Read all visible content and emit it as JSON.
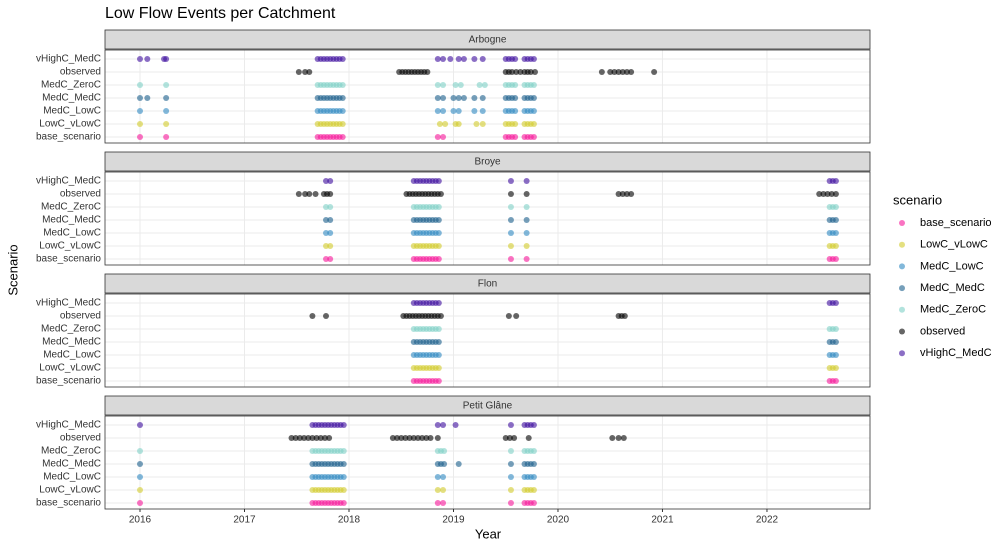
{
  "chart_data": {
    "type": "scatter",
    "title": "Low Flow Events per Catchment",
    "x_label": "Year",
    "y_label": "Scenario",
    "legend_title": "scenario",
    "xlim": [
      2015.665,
      2022.986
    ],
    "xticks": [
      2016,
      2017,
      2018,
      2019,
      2020,
      2021,
      2022
    ],
    "grid": true,
    "legend_position": "right",
    "series": [
      {
        "name": "base_scenario",
        "color": "#f7169a"
      },
      {
        "name": "LowC_vLowC",
        "color": "#d2cc2c"
      },
      {
        "name": "MedC_LowC",
        "color": "#2f89c2"
      },
      {
        "name": "MedC_MedC",
        "color": "#1a5f8c"
      },
      {
        "name": "MedC_ZeroC",
        "color": "#7fd0c6"
      },
      {
        "name": "observed",
        "color": "#000000"
      },
      {
        "name": "vHighC_MedC",
        "color": "#3d0d9e"
      }
    ],
    "panels": [
      {
        "title": "Arbogne",
        "x": [
          [
            2016.0,
            2016.25,
            2017.7,
            2017.73,
            2017.76,
            2017.79,
            2017.82,
            2017.85,
            2017.88,
            2017.91,
            2017.94,
            2018.85,
            2018.9,
            2019.5,
            2019.53,
            2019.56,
            2019.59,
            2019.68,
            2019.71,
            2019.74,
            2019.77
          ],
          [
            2016.0,
            2016.25,
            2017.7,
            2017.73,
            2017.76,
            2017.79,
            2017.82,
            2017.85,
            2017.88,
            2017.91,
            2017.94,
            2018.87,
            2018.92,
            2019.02,
            2019.05,
            2019.22,
            2019.28,
            2019.5,
            2019.53,
            2019.56,
            2019.59,
            2019.68,
            2019.71,
            2019.74,
            2019.77
          ],
          [
            2016.0,
            2016.25,
            2017.7,
            2017.73,
            2017.76,
            2017.79,
            2017.82,
            2017.85,
            2017.88,
            2017.91,
            2017.94,
            2018.85,
            2018.9,
            2019.0,
            2019.05,
            2019.2,
            2019.28,
            2019.5,
            2019.53,
            2019.56,
            2019.59,
            2019.68,
            2019.71,
            2019.74,
            2019.77
          ],
          [
            2016.0,
            2016.07,
            2016.25,
            2017.7,
            2017.73,
            2017.76,
            2017.79,
            2017.82,
            2017.85,
            2017.88,
            2017.91,
            2017.94,
            2018.85,
            2018.9,
            2019.0,
            2019.05,
            2019.1,
            2019.2,
            2019.28,
            2019.5,
            2019.53,
            2019.56,
            2019.59,
            2019.68,
            2019.71,
            2019.74,
            2019.77
          ],
          [
            2016.0,
            2016.25,
            2017.7,
            2017.73,
            2017.76,
            2017.79,
            2017.82,
            2017.85,
            2017.88,
            2017.91,
            2017.94,
            2018.85,
            2018.9,
            2019.02,
            2019.07,
            2019.25,
            2019.3,
            2019.5,
            2019.53,
            2019.56,
            2019.59,
            2019.68,
            2019.71,
            2019.74,
            2019.77
          ],
          [
            2017.52,
            2017.58,
            2017.62,
            2018.48,
            2018.51,
            2018.54,
            2018.57,
            2018.6,
            2018.63,
            2018.66,
            2018.69,
            2018.72,
            2018.75,
            2019.5,
            2019.53,
            2019.56,
            2019.6,
            2019.64,
            2019.68,
            2019.71,
            2019.74,
            2019.78,
            2020.42,
            2020.5,
            2020.54,
            2020.58,
            2020.62,
            2020.66,
            2020.7,
            2020.92
          ],
          [
            2016.0,
            2016.07,
            2016.23,
            2016.25,
            2017.7,
            2017.73,
            2017.76,
            2017.79,
            2017.82,
            2017.85,
            2017.88,
            2017.91,
            2017.94,
            2018.85,
            2018.9,
            2018.97,
            2019.05,
            2019.1,
            2019.2,
            2019.28,
            2019.5,
            2019.53,
            2019.56,
            2019.59,
            2019.68,
            2019.71,
            2019.74,
            2019.77
          ]
        ]
      },
      {
        "title": "Broye",
        "x": [
          [
            2017.78,
            2017.82,
            2018.62,
            2018.65,
            2018.68,
            2018.71,
            2018.74,
            2018.77,
            2018.8,
            2018.83,
            2018.86,
            2019.55,
            2019.7,
            2022.6,
            2022.63,
            2022.66
          ],
          [
            2017.78,
            2017.82,
            2018.62,
            2018.65,
            2018.68,
            2018.71,
            2018.74,
            2018.77,
            2018.8,
            2018.83,
            2018.86,
            2019.55,
            2019.7,
            2022.6,
            2022.63,
            2022.66
          ],
          [
            2017.78,
            2017.82,
            2018.62,
            2018.65,
            2018.68,
            2018.71,
            2018.74,
            2018.77,
            2018.8,
            2018.83,
            2018.86,
            2019.55,
            2019.7,
            2022.6,
            2022.63,
            2022.66
          ],
          [
            2017.78,
            2017.82,
            2018.62,
            2018.65,
            2018.68,
            2018.71,
            2018.74,
            2018.77,
            2018.8,
            2018.83,
            2018.86,
            2019.55,
            2019.7,
            2022.6,
            2022.63,
            2022.66
          ],
          [
            2017.78,
            2017.82,
            2018.62,
            2018.65,
            2018.68,
            2018.71,
            2018.74,
            2018.77,
            2018.8,
            2018.83,
            2018.86,
            2019.55,
            2019.7,
            2022.6,
            2022.63,
            2022.66
          ],
          [
            2017.52,
            2017.58,
            2017.62,
            2017.68,
            2017.76,
            2017.79,
            2017.82,
            2018.55,
            2018.58,
            2018.61,
            2018.64,
            2018.67,
            2018.7,
            2018.73,
            2018.76,
            2018.79,
            2018.82,
            2018.85,
            2018.88,
            2019.55,
            2019.7,
            2020.58,
            2020.62,
            2020.66,
            2020.7,
            2022.5,
            2022.54,
            2022.58,
            2022.62,
            2022.66
          ],
          [
            2017.78,
            2017.82,
            2018.62,
            2018.65,
            2018.68,
            2018.71,
            2018.74,
            2018.77,
            2018.8,
            2018.83,
            2018.86,
            2019.55,
            2019.7,
            2022.6,
            2022.63,
            2022.66
          ]
        ]
      },
      {
        "title": "Flon",
        "x": [
          [
            2018.62,
            2018.65,
            2018.68,
            2018.71,
            2018.74,
            2018.77,
            2018.8,
            2018.83,
            2018.86,
            2022.6,
            2022.63,
            2022.66
          ],
          [
            2018.62,
            2018.65,
            2018.68,
            2018.71,
            2018.74,
            2018.77,
            2018.8,
            2018.83,
            2018.86,
            2022.6,
            2022.63,
            2022.66
          ],
          [
            2018.62,
            2018.65,
            2018.68,
            2018.71,
            2018.74,
            2018.77,
            2018.8,
            2018.83,
            2018.86,
            2022.6,
            2022.63,
            2022.66
          ],
          [
            2018.62,
            2018.65,
            2018.68,
            2018.71,
            2018.74,
            2018.77,
            2018.8,
            2018.83,
            2018.86,
            2022.6,
            2022.63,
            2022.66
          ],
          [
            2018.62,
            2018.65,
            2018.68,
            2018.71,
            2018.74,
            2018.77,
            2018.8,
            2018.83,
            2018.86,
            2022.6,
            2022.63,
            2022.66
          ],
          [
            2017.65,
            2017.78,
            2018.52,
            2018.55,
            2018.58,
            2018.61,
            2018.64,
            2018.67,
            2018.7,
            2018.73,
            2018.76,
            2018.79,
            2018.82,
            2018.85,
            2018.88,
            2019.53,
            2019.6,
            2020.58,
            2020.61,
            2020.64
          ],
          [
            2018.62,
            2018.65,
            2018.68,
            2018.71,
            2018.74,
            2018.77,
            2018.8,
            2018.83,
            2018.86,
            2022.6,
            2022.63,
            2022.66
          ]
        ]
      },
      {
        "title": "Petit Glâne",
        "x": [
          [
            2016.0,
            2017.65,
            2017.68,
            2017.71,
            2017.74,
            2017.77,
            2017.8,
            2017.83,
            2017.86,
            2017.89,
            2017.92,
            2017.95,
            2018.85,
            2018.9,
            2019.55,
            2019.68,
            2019.71,
            2019.74,
            2019.77
          ],
          [
            2016.0,
            2017.65,
            2017.68,
            2017.71,
            2017.74,
            2017.77,
            2017.8,
            2017.83,
            2017.86,
            2017.89,
            2017.92,
            2017.95,
            2018.85,
            2018.9,
            2019.55,
            2019.68,
            2019.71,
            2019.74,
            2019.77
          ],
          [
            2016.0,
            2017.65,
            2017.68,
            2017.71,
            2017.74,
            2017.77,
            2017.8,
            2017.83,
            2017.86,
            2017.89,
            2017.92,
            2017.95,
            2018.85,
            2018.9,
            2019.55,
            2019.68,
            2019.71,
            2019.74,
            2019.77
          ],
          [
            2016.0,
            2017.65,
            2017.68,
            2017.71,
            2017.74,
            2017.77,
            2017.8,
            2017.83,
            2017.86,
            2017.89,
            2017.92,
            2017.95,
            2018.85,
            2018.88,
            2018.91,
            2019.05,
            2019.55,
            2019.68,
            2019.71,
            2019.74,
            2019.77
          ],
          [
            2016.0,
            2017.65,
            2017.68,
            2017.71,
            2017.74,
            2017.77,
            2017.8,
            2017.83,
            2017.86,
            2017.89,
            2017.92,
            2017.95,
            2018.85,
            2018.88,
            2018.91,
            2019.55,
            2019.68,
            2019.71,
            2019.74,
            2019.77
          ],
          [
            2017.45,
            2017.49,
            2017.53,
            2017.57,
            2017.61,
            2017.65,
            2017.69,
            2017.73,
            2017.77,
            2017.81,
            2018.42,
            2018.46,
            2018.5,
            2018.54,
            2018.58,
            2018.62,
            2018.66,
            2018.7,
            2018.74,
            2018.78,
            2018.85,
            2019.5,
            2019.54,
            2019.58,
            2019.72,
            2020.52,
            2020.58,
            2020.63
          ],
          [
            2016.0,
            2017.65,
            2017.68,
            2017.71,
            2017.74,
            2017.77,
            2017.8,
            2017.83,
            2017.86,
            2017.89,
            2017.92,
            2017.95,
            2018.85,
            2018.9,
            2019.02,
            2019.55,
            2019.68,
            2019.71,
            2019.74,
            2019.77
          ]
        ]
      }
    ]
  }
}
